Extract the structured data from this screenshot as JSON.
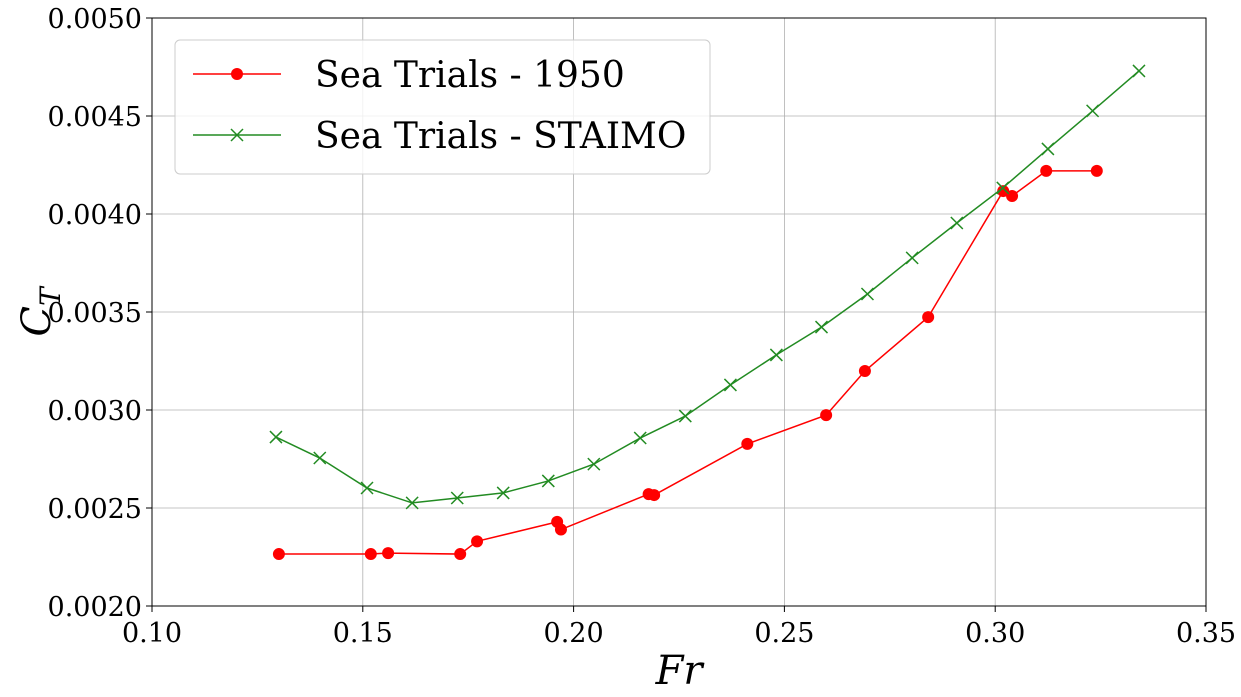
{
  "chart_data": {
    "type": "line",
    "title": "",
    "xlabel": "Fr",
    "ylabel": "C",
    "ylabel_subscript": "T",
    "xlim": [
      0.1,
      0.35
    ],
    "ylim": [
      0.002,
      0.005
    ],
    "xticks": [
      "0.10",
      "0.15",
      "0.20",
      "0.25",
      "0.30",
      "0.35"
    ],
    "yticks": [
      "0.0020",
      "0.0025",
      "0.0030",
      "0.0035",
      "0.0040",
      "0.0045",
      "0.0050"
    ],
    "grid": true,
    "legend_position": "top-left",
    "series": [
      {
        "name": "Sea Trials - 1950",
        "color": "#ff0000",
        "marker": "circle",
        "x": [
          0.1301,
          0.1519,
          0.156,
          0.1731,
          0.1771,
          0.1961,
          0.197,
          0.2178,
          0.2191,
          0.2412,
          0.2599,
          0.2691,
          0.2841,
          0.3019,
          0.304,
          0.3121,
          0.3241
        ],
        "y": [
          0.002265,
          0.002265,
          0.00227,
          0.002265,
          0.00233,
          0.002429,
          0.00239,
          0.002571,
          0.002566,
          0.002827,
          0.002974,
          0.003199,
          0.003474,
          0.004117,
          0.004092,
          0.00422,
          0.00422
        ]
      },
      {
        "name": "Sea Trials - STAIMO",
        "color": "#228b22",
        "marker": "x",
        "x": [
          0.1294,
          0.1398,
          0.151,
          0.1617,
          0.1724,
          0.1833,
          0.194,
          0.2048,
          0.2158,
          0.2265,
          0.2372,
          0.2481,
          0.2588,
          0.2697,
          0.2803,
          0.2909,
          0.3018,
          0.3125,
          0.3231,
          0.3341
        ],
        "y": [
          0.002862,
          0.002755,
          0.002602,
          0.002526,
          0.002551,
          0.002577,
          0.002638,
          0.002724,
          0.002857,
          0.002969,
          0.003128,
          0.003281,
          0.003423,
          0.003592,
          0.003776,
          0.003954,
          0.004133,
          0.004332,
          0.004526,
          0.00473
        ]
      }
    ]
  }
}
